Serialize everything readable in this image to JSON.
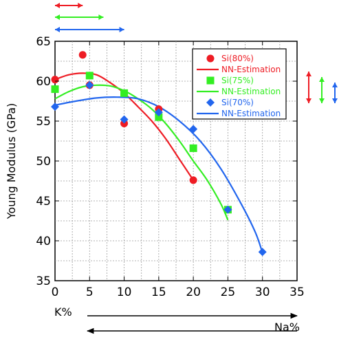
{
  "chart_data": {
    "type": "scatter",
    "title": "",
    "xlabel": "K%",
    "xlabel_secondary": "Na%",
    "ylabel": "Young Modulus (GPa)",
    "xlim": [
      0,
      35
    ],
    "ylim": [
      35,
      65
    ],
    "x_ticks": [
      "0",
      "5",
      "10",
      "15",
      "20",
      "25",
      "30",
      "35"
    ],
    "y_ticks": [
      "35",
      "40",
      "45",
      "50",
      "55",
      "60",
      "65"
    ],
    "grid": true,
    "legend_position": "top-right",
    "series": [
      {
        "name": "Si(80%)",
        "color": "#ee1c24",
        "marker": "circle",
        "points": [
          [
            0,
            60.2
          ],
          [
            4,
            63.3
          ],
          [
            5,
            59.5
          ],
          [
            10,
            54.7
          ],
          [
            15,
            56.5
          ],
          [
            20,
            47.6
          ]
        ],
        "fit_name": "NN-Estimation",
        "fit": [
          [
            0,
            60.2
          ],
          [
            2,
            60.8
          ],
          [
            4,
            61.0
          ],
          [
            6,
            60.8
          ],
          [
            8,
            59.8
          ],
          [
            10,
            58.5
          ],
          [
            12,
            56.8
          ],
          [
            14,
            55.0
          ],
          [
            16,
            52.8
          ],
          [
            18,
            50.2
          ],
          [
            19,
            48.9
          ],
          [
            20,
            47.6
          ]
        ]
      },
      {
        "name": "Si(75%)",
        "color": "#33ee22",
        "marker": "square",
        "points": [
          [
            0,
            59.0
          ],
          [
            5,
            60.7
          ],
          [
            10,
            58.5
          ],
          [
            15,
            55.5
          ],
          [
            20,
            51.6
          ],
          [
            25,
            43.9
          ]
        ],
        "fit_name": "NN-Estimation",
        "fit": [
          [
            0,
            57.8
          ],
          [
            2,
            58.7
          ],
          [
            4,
            59.3
          ],
          [
            6,
            59.5
          ],
          [
            8,
            59.4
          ],
          [
            10,
            58.8
          ],
          [
            12,
            57.8
          ],
          [
            14,
            56.5
          ],
          [
            16,
            54.7
          ],
          [
            18,
            52.5
          ],
          [
            20,
            50.0
          ],
          [
            22,
            47.6
          ],
          [
            24,
            44.6
          ],
          [
            25,
            42.6
          ]
        ]
      },
      {
        "name": "Si(70%)",
        "color": "#2266ee",
        "marker": "diamond",
        "points": [
          [
            0,
            56.8
          ],
          [
            5,
            59.5
          ],
          [
            10,
            55.2
          ],
          [
            15,
            56.1
          ],
          [
            20,
            54.0
          ],
          [
            25,
            43.9
          ],
          [
            30,
            38.6
          ]
        ],
        "fit_name": "NN-Estimation",
        "fit": [
          [
            0,
            57.0
          ],
          [
            3,
            57.5
          ],
          [
            6,
            57.9
          ],
          [
            9,
            58.0
          ],
          [
            12,
            57.8
          ],
          [
            15,
            56.8
          ],
          [
            18,
            55.0
          ],
          [
            21,
            52.5
          ],
          [
            24,
            49.0
          ],
          [
            27,
            44.5
          ],
          [
            29,
            41.0
          ],
          [
            30,
            38.5
          ]
        ]
      }
    ],
    "annotations": {
      "top_arrow_colors": [
        "#ee1c24",
        "#33ee22",
        "#2266ee"
      ],
      "top_arrow_spans_k": [
        [
          0,
          4
        ],
        [
          0,
          7
        ],
        [
          0,
          10
        ]
      ],
      "bottom_arrow_labels": [
        "K%",
        "Na%"
      ]
    }
  }
}
